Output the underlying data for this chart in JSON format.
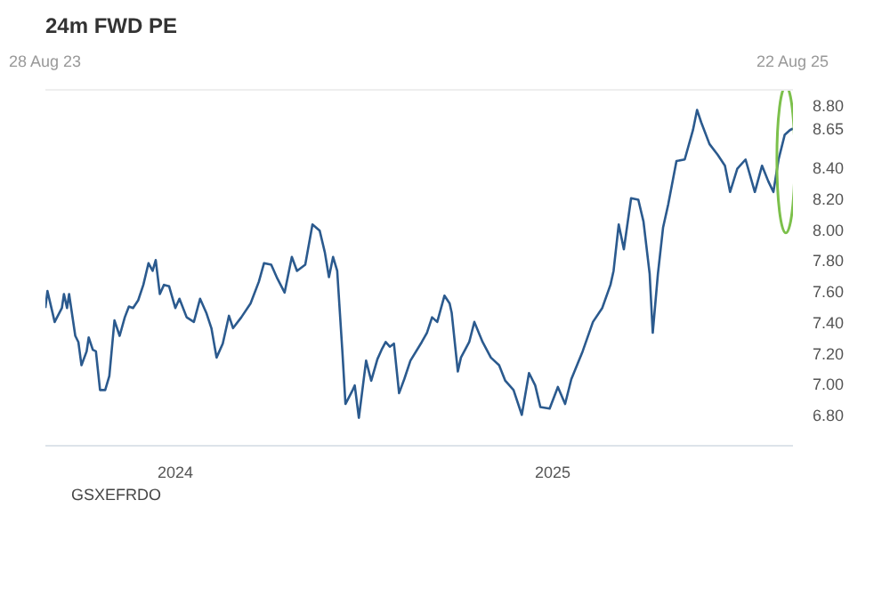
{
  "chart_data": {
    "type": "line",
    "title": "24m FWD PE",
    "x": [
      "2023-08-28",
      "2023-08-30",
      "2023-09-06",
      "2023-09-13",
      "2023-09-15",
      "2023-09-18",
      "2023-09-20",
      "2023-09-26",
      "2023-09-29",
      "2023-10-02",
      "2023-10-07",
      "2023-10-09",
      "2023-10-13",
      "2023-10-16",
      "2023-10-20",
      "2023-10-25",
      "2023-10-29",
      "2023-11-03",
      "2023-11-08",
      "2023-11-13",
      "2023-11-17",
      "2023-11-21",
      "2023-11-26",
      "2023-12-01",
      "2023-12-06",
      "2023-12-10",
      "2023-12-13",
      "2023-12-17",
      "2023-12-21",
      "2023-12-26",
      "2024-01-01",
      "2024-01-05",
      "2024-01-12",
      "2024-01-19",
      "2024-01-25",
      "2024-01-31",
      "2024-02-05",
      "2024-02-10",
      "2024-02-16",
      "2024-02-22",
      "2024-02-26",
      "2024-03-05",
      "2024-03-14",
      "2024-03-22",
      "2024-03-27",
      "2024-04-03",
      "2024-04-09",
      "2024-04-16",
      "2024-04-23",
      "2024-04-28",
      "2024-05-06",
      "2024-05-13",
      "2024-05-20",
      "2024-05-25",
      "2024-05-29",
      "2024-06-02",
      "2024-06-06",
      "2024-06-11",
      "2024-06-14",
      "2024-06-21",
      "2024-06-23",
      "2024-06-27",
      "2024-07-04",
      "2024-07-09",
      "2024-07-15",
      "2024-07-19",
      "2024-07-23",
      "2024-07-27",
      "2024-07-31",
      "2024-08-05",
      "2024-08-10",
      "2024-08-16",
      "2024-08-27",
      "2024-09-01",
      "2024-09-06",
      "2024-09-11",
      "2024-09-18",
      "2024-09-23",
      "2024-09-25",
      "2024-10-01",
      "2024-10-04",
      "2024-10-12",
      "2024-10-17",
      "2024-10-25",
      "2024-11-02",
      "2024-11-10",
      "2024-11-16",
      "2024-11-24",
      "2024-12-02",
      "2024-12-09",
      "2024-12-15",
      "2024-12-20",
      "2024-12-29",
      "2025-01-06",
      "2025-01-13",
      "2025-01-19",
      "2025-01-30",
      "2025-02-09",
      "2025-02-18",
      "2025-02-26",
      "2025-03-01",
      "2025-03-06",
      "2025-03-11",
      "2025-03-18",
      "2025-03-25",
      "2025-03-30",
      "2025-04-05",
      "2025-04-08",
      "2025-04-13",
      "2025-04-18",
      "2025-04-23",
      "2025-05-01",
      "2025-05-09",
      "2025-05-17",
      "2025-05-21",
      "2025-05-25",
      "2025-06-02",
      "2025-06-10",
      "2025-06-17",
      "2025-06-22",
      "2025-06-29",
      "2025-07-07",
      "2025-07-16",
      "2025-07-23",
      "2025-07-29",
      "2025-08-03",
      "2025-08-08",
      "2025-08-14",
      "2025-08-19",
      "2025-08-22"
    ],
    "series": [
      {
        "name": "GSXEFRDO",
        "color": "#2b5a8e",
        "values": [
          7.49,
          7.6,
          7.4,
          7.49,
          7.58,
          7.49,
          7.58,
          7.31,
          7.27,
          7.12,
          7.21,
          7.3,
          7.22,
          7.21,
          6.96,
          6.96,
          7.05,
          7.41,
          7.31,
          7.43,
          7.5,
          7.49,
          7.54,
          7.64,
          7.78,
          7.73,
          7.8,
          7.58,
          7.64,
          7.63,
          7.49,
          7.55,
          7.43,
          7.4,
          7.55,
          7.46,
          7.36,
          7.17,
          7.26,
          7.44,
          7.36,
          7.43,
          7.52,
          7.66,
          7.78,
          7.77,
          7.68,
          7.59,
          7.82,
          7.73,
          7.77,
          8.03,
          7.99,
          7.85,
          7.69,
          7.82,
          7.73,
          7.21,
          6.87,
          6.96,
          6.99,
          6.78,
          7.15,
          7.02,
          7.16,
          7.22,
          7.27,
          7.24,
          7.26,
          6.94,
          7.03,
          7.15,
          7.27,
          7.33,
          7.43,
          7.4,
          7.57,
          7.52,
          7.46,
          7.08,
          7.17,
          7.27,
          7.4,
          7.27,
          7.17,
          7.12,
          7.02,
          6.96,
          6.8,
          7.07,
          6.99,
          6.85,
          6.84,
          6.98,
          6.87,
          7.03,
          7.21,
          7.4,
          7.49,
          7.64,
          7.73,
          8.03,
          7.87,
          8.2,
          8.19,
          8.05,
          7.71,
          7.33,
          7.71,
          8.01,
          8.16,
          8.44,
          8.45,
          8.64,
          8.77,
          8.69,
          8.55,
          8.48,
          8.41,
          8.24,
          8.39,
          8.45,
          8.24,
          8.41,
          8.31,
          8.24,
          8.45,
          8.61,
          8.64,
          8.65
        ]
      }
    ],
    "xlim": [
      "2023-08-28",
      "2025-08-22"
    ],
    "xticks": [
      {
        "value": "2024-01-01",
        "label": "2024"
      },
      {
        "value": "2025-01-01",
        "label": "2025"
      }
    ],
    "x2lim": [
      "2023-08-28",
      "2025-08-22"
    ],
    "x2ticks": [
      {
        "value": "2023-08-28",
        "label": "28 Aug 23"
      },
      {
        "value": "2025-08-22",
        "label": "22 Aug 25"
      }
    ],
    "ylim": [
      6.6,
      8.9
    ],
    "yticks": [
      {
        "value": 6.8,
        "label": "6.80"
      },
      {
        "value": 7.0,
        "label": "7.00"
      },
      {
        "value": 7.2,
        "label": "7.20"
      },
      {
        "value": 7.4,
        "label": "7.40"
      },
      {
        "value": 7.6,
        "label": "7.60"
      },
      {
        "value": 7.8,
        "label": "7.80"
      },
      {
        "value": 8.0,
        "label": "8.00"
      },
      {
        "value": 8.2,
        "label": "8.20"
      },
      {
        "value": 8.4,
        "label": "8.40"
      },
      {
        "value": 8.65,
        "label": "8.65"
      },
      {
        "value": 8.8,
        "label": "8.80"
      }
    ],
    "grid": false,
    "legend": "bottom",
    "marker": "none",
    "line_style": "solid"
  }
}
